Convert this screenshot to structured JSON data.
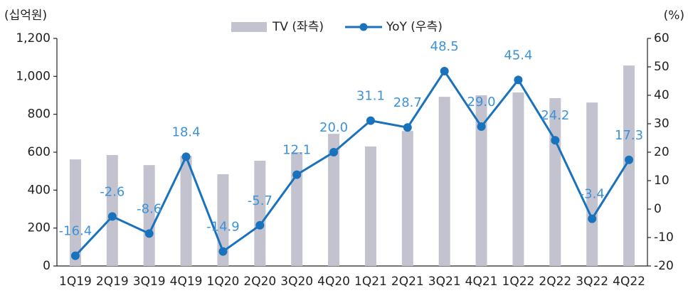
{
  "chart_data": {
    "type": "bar_line",
    "y_label": "(십억원)",
    "y2_label": "(%)",
    "categories": [
      "1Q19",
      "2Q19",
      "3Q19",
      "4Q19",
      "1Q20",
      "2Q20",
      "3Q20",
      "4Q20",
      "1Q21",
      "2Q21",
      "3Q21",
      "4Q21",
      "1Q22",
      "2Q22",
      "3Q22",
      "4Q22"
    ],
    "series": [
      {
        "name": "TV (좌측)",
        "type": "bar",
        "color": "#c3c3cf",
        "axis": "y",
        "values": [
          562,
          585,
          532,
          581,
          484,
          555,
          600,
          697,
          630,
          712,
          892,
          900,
          915,
          885,
          862,
          1057
        ]
      },
      {
        "name": "YoY (우측)",
        "type": "line",
        "color": "#1a72bd",
        "label_color": "#3d92d8",
        "axis": "y2",
        "values": [
          -16.4,
          -2.6,
          -8.6,
          18.4,
          -14.9,
          -5.7,
          12.1,
          20.0,
          31.1,
          28.7,
          48.5,
          29.0,
          45.4,
          24.2,
          -3.4,
          17.3
        ],
        "value_labels": [
          "-16.4",
          "-2.6",
          "-8.6",
          "18.4",
          "-14.9",
          "-5.7",
          "12.1",
          "20.0",
          "31.1",
          "28.7",
          "48.5",
          "29.0",
          "45.4",
          "24.2",
          "-3.4",
          "17.3"
        ]
      }
    ],
    "ylim": [
      0,
      1200
    ],
    "yticks": [
      0,
      200,
      400,
      600,
      800,
      {
        "value": 1000,
        "label": "1,000"
      },
      {
        "value": 1200,
        "label": "1,200"
      }
    ],
    "y2lim": [
      -20,
      60
    ],
    "y2ticks": [
      -20,
      -10,
      0,
      10,
      20,
      30,
      40,
      50,
      60
    ],
    "legend": "top"
  }
}
